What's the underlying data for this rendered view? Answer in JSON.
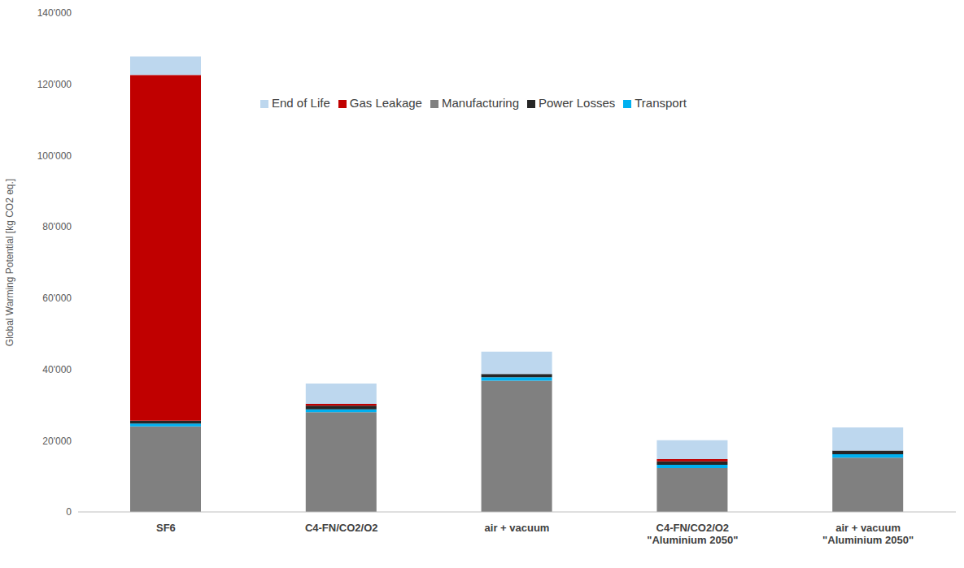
{
  "chart_data": {
    "type": "bar",
    "stacked": true,
    "grid": false,
    "legend": "top",
    "y_label": "Global Warming Potential [kg CO2 eq.]",
    "categories": [
      "SF6",
      "C4-FN/CO2/O2",
      "air + vacuum",
      "C4-FN/CO2/O2 \"Aluminium 2050\"",
      "air + vacuum \"Aluminium 2050\""
    ],
    "series": [
      {
        "name": "Manufacturing",
        "color": "#808080",
        "values": [
          24000,
          28000,
          36800,
          12300,
          15200
        ]
      },
      {
        "name": "Transport",
        "color": "#00b0f0",
        "values": [
          800,
          800,
          1000,
          900,
          1000
        ]
      },
      {
        "name": "Power Losses",
        "color": "#262626",
        "values": [
          800,
          1000,
          900,
          1000,
          1000
        ]
      },
      {
        "name": "Gas Leakage",
        "color": "#c00000",
        "values": [
          97000,
          500,
          0,
          600,
          0
        ]
      },
      {
        "name": "End of Life",
        "color": "#bdd7ee",
        "values": [
          5200,
          5700,
          6300,
          5300,
          6500
        ]
      }
    ],
    "ylim": [
      0,
      140000
    ],
    "yticks": [
      0,
      {
        "value": 20000,
        "label": "20'000"
      },
      {
        "value": 40000,
        "label": "40'000"
      },
      {
        "value": 60000,
        "label": "60'000"
      },
      {
        "value": 80000,
        "label": "80'000"
      },
      {
        "value": 100000,
        "label": "100'000"
      },
      {
        "value": 120000,
        "label": "120'000"
      },
      {
        "value": 140000,
        "label": "140'000"
      }
    ]
  }
}
